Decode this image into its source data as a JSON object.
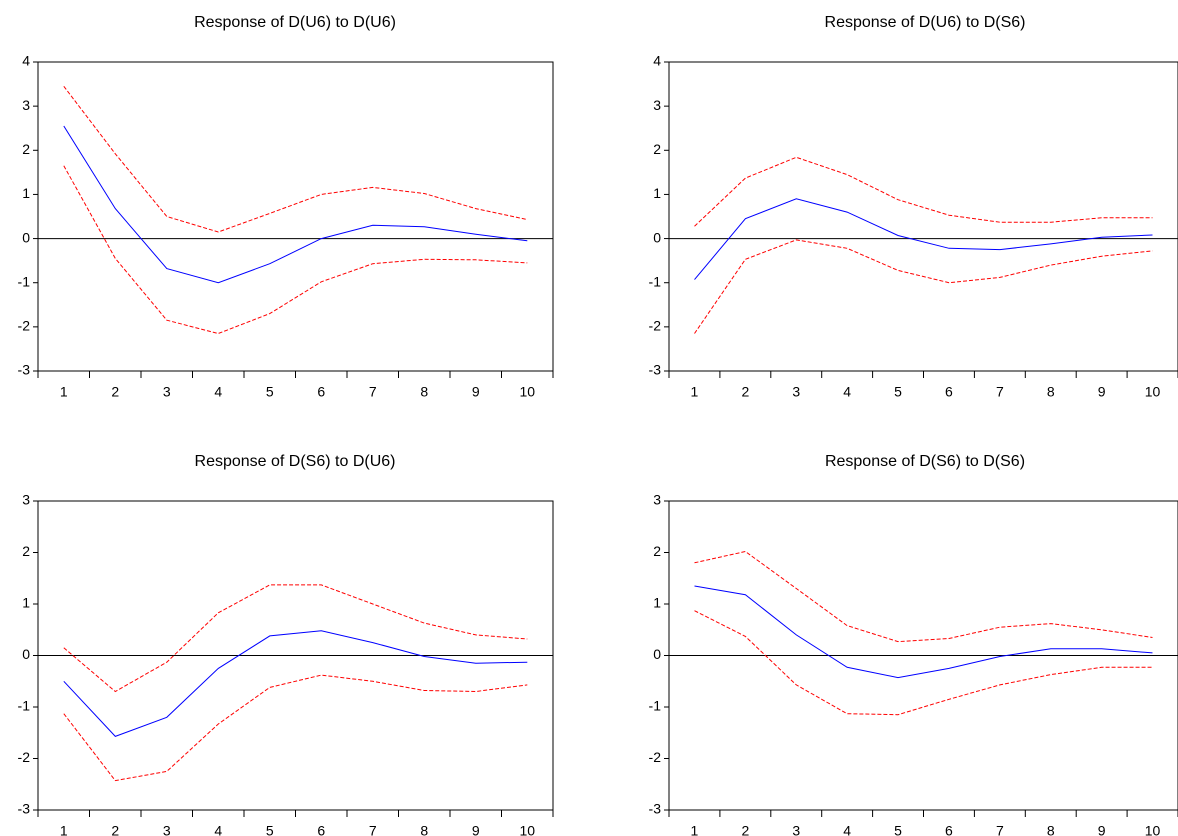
{
  "colors": {
    "impulse": "#0000ff",
    "bands": "#ff0000",
    "zero_line": "#000000",
    "frame": "#000000"
  },
  "chart_data": [
    {
      "type": "line",
      "title": "Response of D(U6) to D(U6)",
      "x": [
        1,
        2,
        3,
        4,
        5,
        6,
        7,
        8,
        9,
        10
      ],
      "ylim": [
        -3,
        4
      ],
      "yticks": [
        -3,
        -2,
        -1,
        0,
        1,
        2,
        3,
        4
      ],
      "grid": false,
      "series": [
        {
          "role": "response",
          "style": "solid",
          "values": [
            2.55,
            0.68,
            -0.68,
            -1.0,
            -0.57,
            0.0,
            0.3,
            0.27,
            0.1,
            -0.05
          ]
        },
        {
          "role": "upper band",
          "style": "dashed",
          "values": [
            3.45,
            1.92,
            0.5,
            0.15,
            0.57,
            1.0,
            1.16,
            1.02,
            0.68,
            0.43
          ]
        },
        {
          "role": "lower band",
          "style": "dashed",
          "values": [
            1.65,
            -0.45,
            -1.85,
            -2.15,
            -1.7,
            -0.98,
            -0.57,
            -0.47,
            -0.48,
            -0.55
          ]
        }
      ]
    },
    {
      "type": "line",
      "title": "Response of D(U6) to D(S6)",
      "x": [
        1,
        2,
        3,
        4,
        5,
        6,
        7,
        8,
        9,
        10
      ],
      "ylim": [
        -3,
        4
      ],
      "yticks": [
        -3,
        -2,
        -1,
        0,
        1,
        2,
        3,
        4
      ],
      "grid": false,
      "series": [
        {
          "role": "response",
          "style": "solid",
          "values": [
            -0.93,
            0.45,
            0.9,
            0.6,
            0.07,
            -0.22,
            -0.25,
            -0.12,
            0.03,
            0.08
          ]
        },
        {
          "role": "upper band",
          "style": "dashed",
          "values": [
            0.28,
            1.37,
            1.84,
            1.45,
            0.88,
            0.53,
            0.37,
            0.37,
            0.47,
            0.47
          ]
        },
        {
          "role": "lower band",
          "style": "dashed",
          "values": [
            -2.15,
            -0.47,
            -0.03,
            -0.22,
            -0.72,
            -1.0,
            -0.88,
            -0.6,
            -0.4,
            -0.28
          ]
        }
      ]
    },
    {
      "type": "line",
      "title": "Response of D(S6) to D(U6)",
      "x": [
        1,
        2,
        3,
        4,
        5,
        6,
        7,
        8,
        9,
        10
      ],
      "ylim": [
        -3,
        3
      ],
      "yticks": [
        -3,
        -2,
        -1,
        0,
        1,
        2,
        3
      ],
      "grid": false,
      "series": [
        {
          "role": "response",
          "style": "solid",
          "values": [
            -0.5,
            -1.57,
            -1.2,
            -0.25,
            0.38,
            0.48,
            0.25,
            -0.02,
            -0.15,
            -0.13
          ]
        },
        {
          "role": "upper band",
          "style": "dashed",
          "values": [
            0.15,
            -0.7,
            -0.13,
            0.83,
            1.37,
            1.37,
            1.0,
            0.63,
            0.4,
            0.32
          ]
        },
        {
          "role": "lower band",
          "style": "dashed",
          "values": [
            -1.13,
            -2.43,
            -2.25,
            -1.33,
            -0.62,
            -0.38,
            -0.5,
            -0.68,
            -0.7,
            -0.57
          ]
        }
      ]
    },
    {
      "type": "line",
      "title": "Response of D(S6) to D(S6)",
      "x": [
        1,
        2,
        3,
        4,
        5,
        6,
        7,
        8,
        9,
        10
      ],
      "ylim": [
        -3,
        3
      ],
      "yticks": [
        -3,
        -2,
        -1,
        0,
        1,
        2,
        3
      ],
      "grid": false,
      "series": [
        {
          "role": "response",
          "style": "solid",
          "values": [
            1.35,
            1.18,
            0.4,
            -0.23,
            -0.43,
            -0.25,
            -0.02,
            0.13,
            0.13,
            0.05
          ]
        },
        {
          "role": "upper band",
          "style": "dashed",
          "values": [
            1.8,
            2.02,
            1.3,
            0.58,
            0.27,
            0.33,
            0.55,
            0.62,
            0.5,
            0.35
          ]
        },
        {
          "role": "lower band",
          "style": "dashed",
          "values": [
            0.87,
            0.37,
            -0.57,
            -1.13,
            -1.15,
            -0.85,
            -0.57,
            -0.37,
            -0.23,
            -0.23
          ]
        }
      ]
    }
  ]
}
